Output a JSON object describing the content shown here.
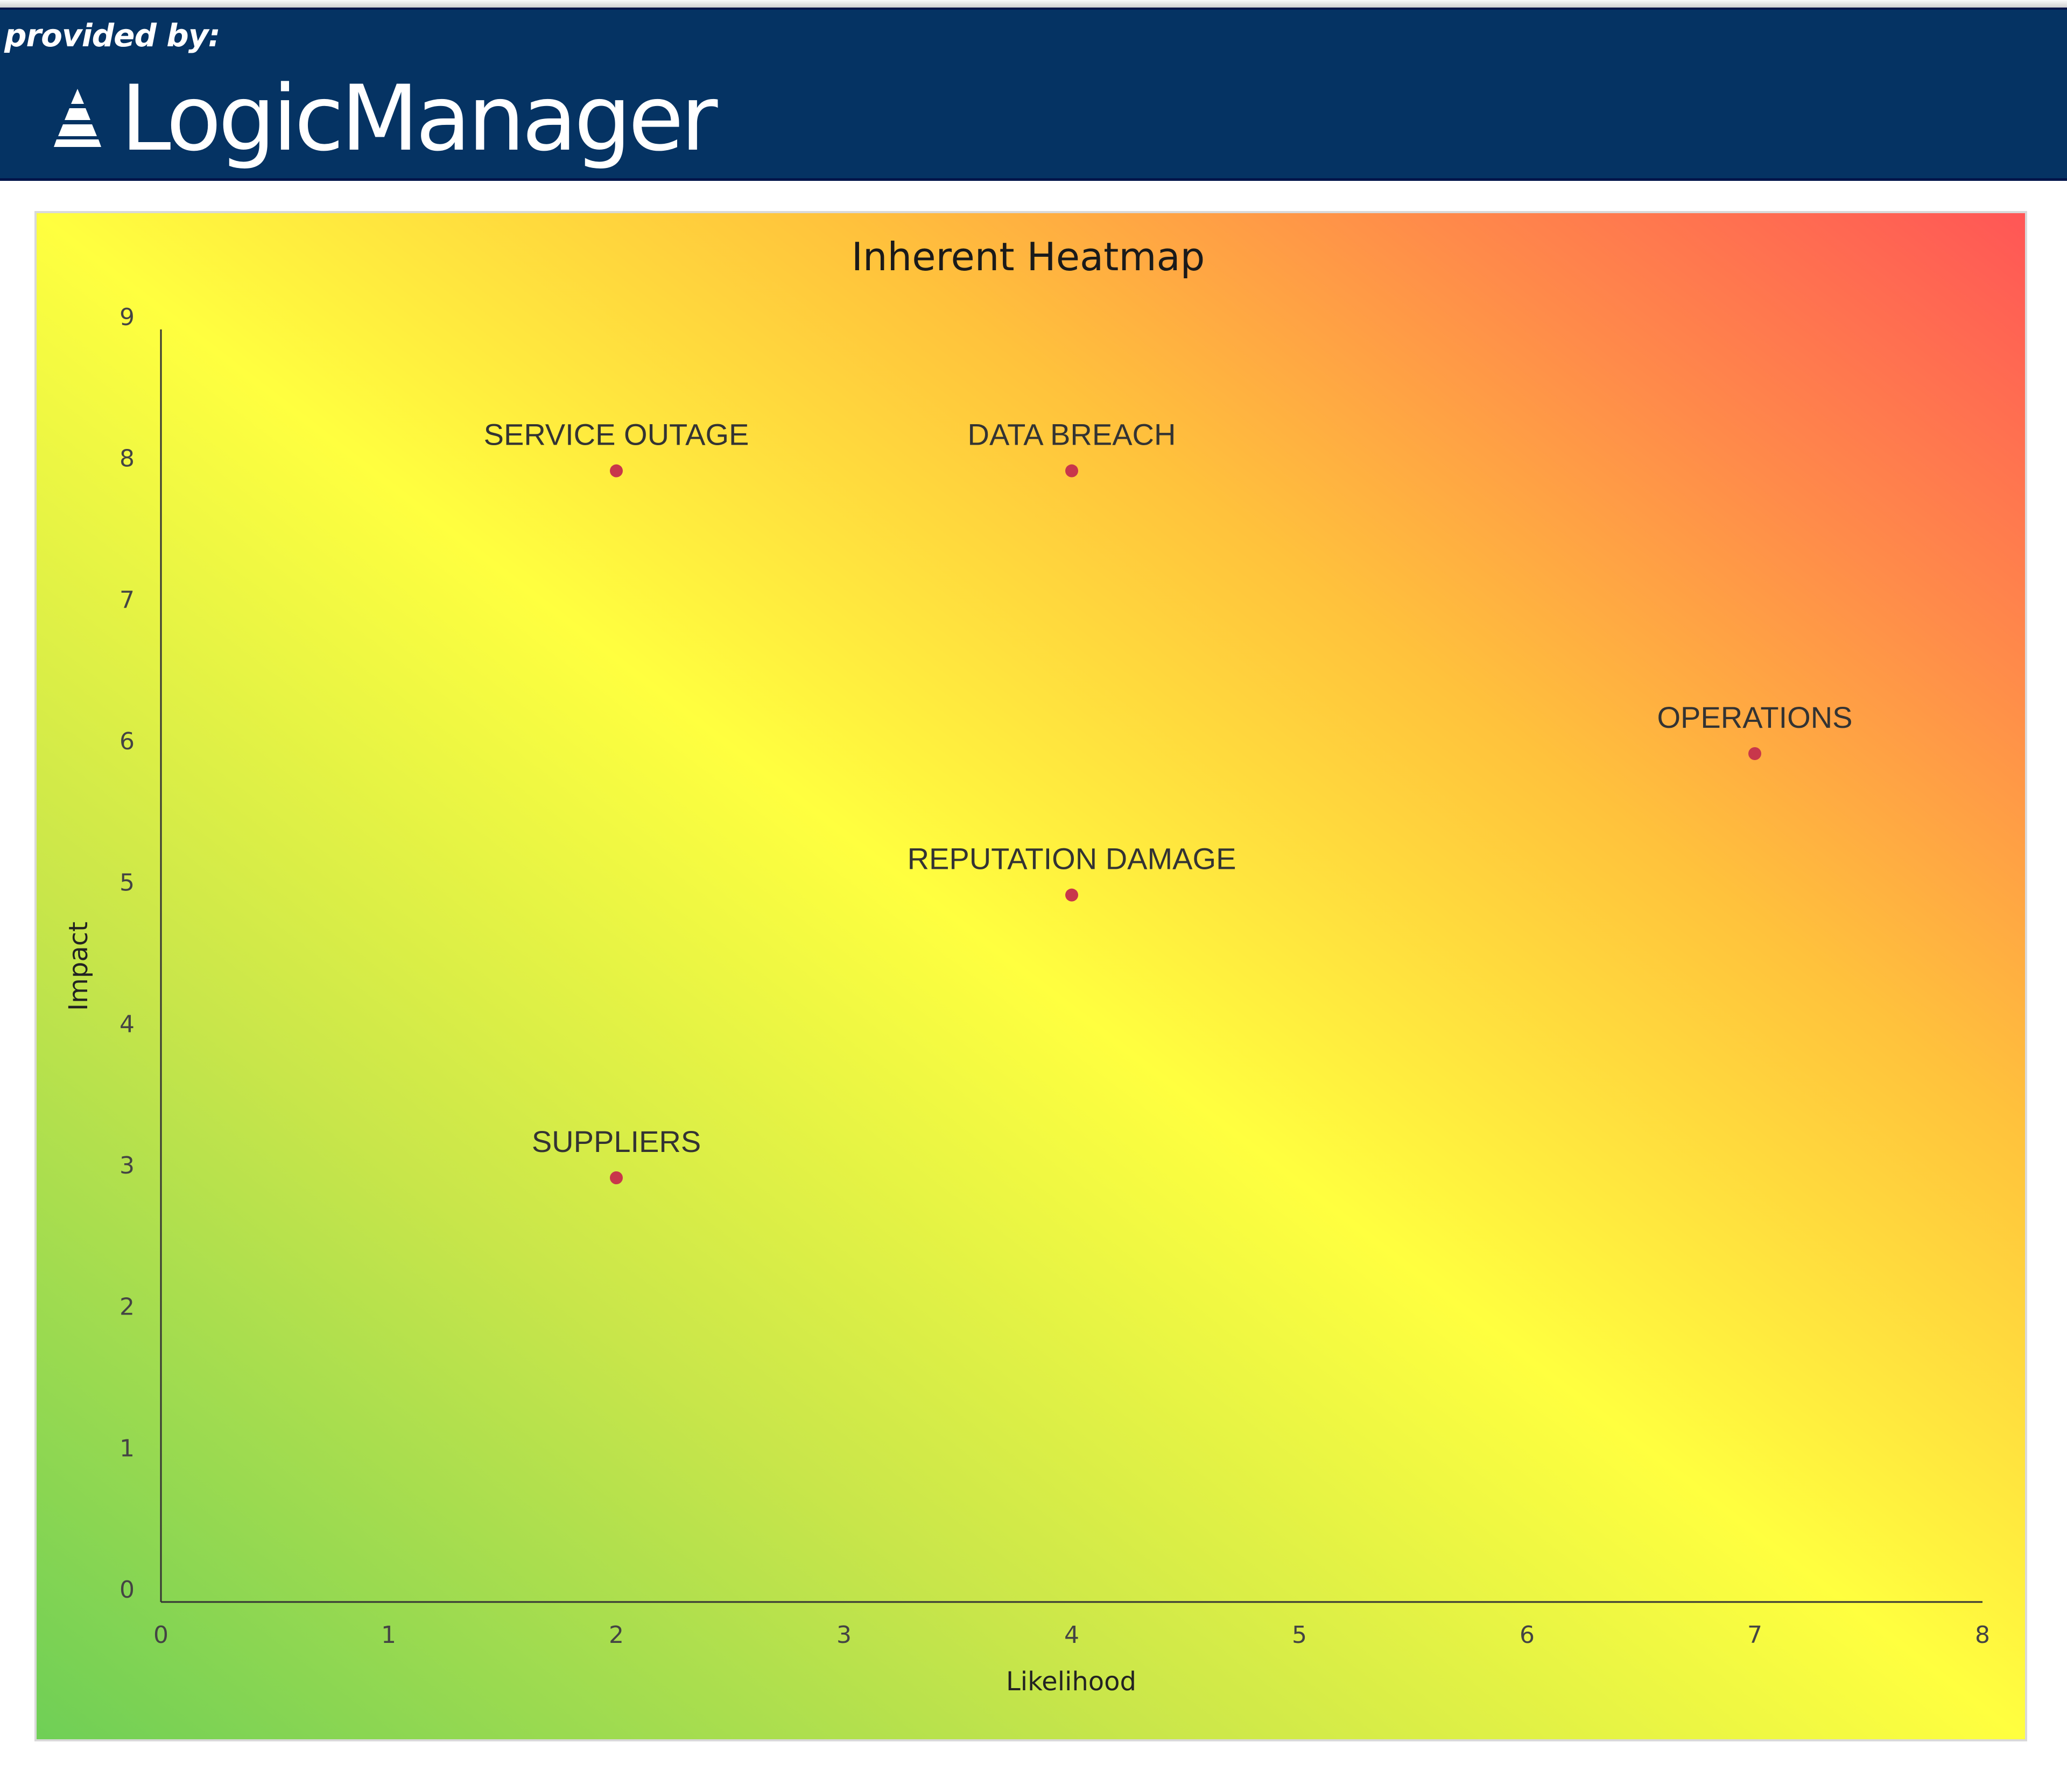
{
  "header": {
    "provided_by": "provided by:",
    "brand": "LogicManager",
    "brand_color": "#053363"
  },
  "chart_data": {
    "type": "scatter",
    "title": "Inherent Heatmap",
    "xlabel": "Likelihood",
    "ylabel": "Impact",
    "xlim": [
      0,
      8
    ],
    "ylim": [
      0,
      9
    ],
    "xticks": [
      "0",
      "1",
      "2",
      "3",
      "4",
      "5",
      "6",
      "7",
      "8"
    ],
    "yticks": [
      "0",
      "1",
      "2",
      "3",
      "4",
      "5",
      "6",
      "7",
      "8",
      "9"
    ],
    "grid": false,
    "background": "diagonal gradient green (low) to yellow to red (high)",
    "marker_color": "#c8374b",
    "points": [
      {
        "label": "SERVICE OUTAGE",
        "x": 2,
        "y": 8
      },
      {
        "label": "DATA BREACH",
        "x": 4,
        "y": 8
      },
      {
        "label": "OPERATIONS",
        "x": 7,
        "y": 6
      },
      {
        "label": "REPUTATION DAMAGE",
        "x": 4,
        "y": 5
      },
      {
        "label": "SUPPLIERS",
        "x": 2,
        "y": 3
      }
    ]
  }
}
